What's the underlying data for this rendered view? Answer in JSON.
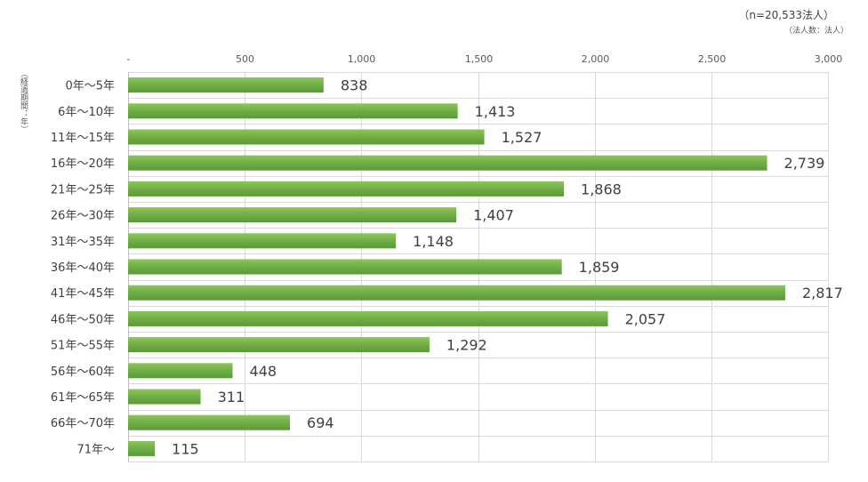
{
  "chart_data": {
    "type": "bar",
    "orientation": "horizontal",
    "categories": [
      "0年～5年",
      "6年～10年",
      "11年～15年",
      "16年～20年",
      "21年～25年",
      "26年～30年",
      "31年～35年",
      "36年～40年",
      "41年～45年",
      "46年～50年",
      "51年～55年",
      "56年～60年",
      "61年～65年",
      "66年～70年",
      "71年～"
    ],
    "values": [
      838,
      1413,
      1527,
      2739,
      1868,
      1407,
      1148,
      1859,
      2817,
      2057,
      1292,
      448,
      311,
      694,
      115
    ],
    "value_labels": [
      "838",
      "1,413",
      "1,527",
      "2,739",
      "1,868",
      "1,407",
      "1,148",
      "1,859",
      "2,817",
      "2,057",
      "1,292",
      "448",
      "311",
      "694",
      "115"
    ],
    "xlim": [
      0,
      3000
    ],
    "xticks": [
      0,
      500,
      1000,
      1500,
      2000,
      2500,
      3000
    ],
    "xtick_labels": [
      "-",
      "500",
      "1,000",
      "1,500",
      "2,000",
      "2,500",
      "3,000"
    ],
    "ylabel": "（経過期間：年）",
    "note": "（n=20,533法人）",
    "unit": "（法人数：法人）",
    "grid": true,
    "bar_color": "#70ad47"
  }
}
